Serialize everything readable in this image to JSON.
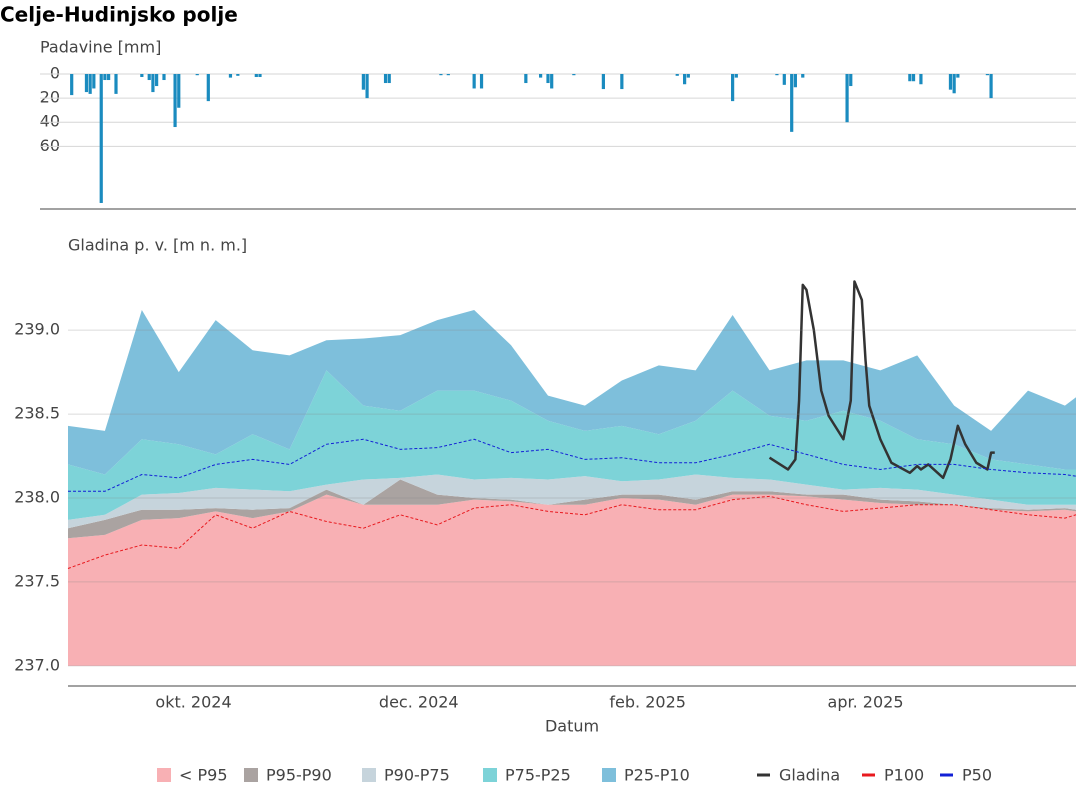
{
  "title": "Celje-Hudinjsko polje",
  "chart_data": [
    {
      "type": "bar",
      "ylabel": "Padavine [mm]",
      "color": "#1a8bbf",
      "inverted": true,
      "grid": true,
      "ylim": [
        0,
        112
      ],
      "yticks": [
        0,
        20,
        40,
        60
      ],
      "xlim": [
        "2024-08-28",
        "2025-05-28"
      ],
      "x": [
        "2024-08-29",
        "2024-09-02",
        "2024-09-03",
        "2024-09-04",
        "2024-09-06",
        "2024-09-07",
        "2024-09-08",
        "2024-09-10",
        "2024-09-17",
        "2024-09-19",
        "2024-09-20",
        "2024-09-21",
        "2024-09-23",
        "2024-09-26",
        "2024-09-27",
        "2024-10-02",
        "2024-10-05",
        "2024-10-11",
        "2024-10-13",
        "2024-10-18",
        "2024-10-19",
        "2024-11-16",
        "2024-11-17",
        "2024-11-22",
        "2024-11-23",
        "2024-12-07",
        "2024-12-09",
        "2024-12-16",
        "2024-12-18",
        "2024-12-30",
        "2025-01-03",
        "2025-01-05",
        "2025-01-06",
        "2025-01-12",
        "2025-01-20",
        "2025-01-25",
        "2025-02-09",
        "2025-02-11",
        "2025-02-12",
        "2025-02-24",
        "2025-02-25",
        "2025-03-08",
        "2025-03-10",
        "2025-03-12",
        "2025-03-13",
        "2025-03-15",
        "2025-03-27",
        "2025-03-28",
        "2025-04-13",
        "2025-04-14",
        "2025-04-16",
        "2025-04-24",
        "2025-04-25",
        "2025-04-26",
        "2025-05-04",
        "2025-05-05"
      ],
      "values": [
        17.5,
        15,
        16.5,
        12,
        107,
        5,
        5,
        16.5,
        2.5,
        5,
        15,
        10,
        5,
        44,
        28,
        1,
        22.5,
        3,
        1.5,
        2.5,
        2.5,
        13,
        20,
        7.5,
        7.5,
        1,
        1,
        12,
        12,
        7.5,
        3,
        7.5,
        12,
        1,
        12.5,
        12.5,
        1.5,
        8.5,
        3,
        22.5,
        3,
        1,
        9,
        48,
        11,
        3,
        40,
        10,
        6,
        6,
        8.5,
        13,
        16,
        3,
        1,
        20
      ]
    },
    {
      "type": "area",
      "ylabel": "Gladina p. v. [m n. m.]",
      "xlabel": "Datum",
      "grid": true,
      "ylim": [
        236.88,
        239.4
      ],
      "area_base": 237,
      "yticks": [
        {
          "value": 237,
          "label": "237.0"
        },
        {
          "value": 237.5,
          "label": "237.5"
        },
        {
          "value": 238,
          "label": "238.0"
        },
        {
          "value": 238.5,
          "label": "238.5"
        },
        {
          "value": 239,
          "label": "239.0"
        }
      ],
      "xlim": [
        "2024-08-28",
        "2025-05-28"
      ],
      "xticks": [
        {
          "value": "2024-10-01",
          "label": "okt. 2024"
        },
        {
          "value": "2024-12-01",
          "label": "dec. 2024"
        },
        {
          "value": "2025-02-01",
          "label": "feb. 2025"
        },
        {
          "value": "2025-04-01",
          "label": "apr. 2025"
        }
      ],
      "x": [
        "2024-08-28",
        "2024-09-07",
        "2024-09-17",
        "2024-09-27",
        "2024-10-07",
        "2024-10-17",
        "2024-10-27",
        "2024-11-06",
        "2024-11-16",
        "2024-11-26",
        "2024-12-06",
        "2024-12-16",
        "2024-12-26",
        "2025-01-05",
        "2025-01-15",
        "2025-01-25",
        "2025-02-04",
        "2025-02-14",
        "2025-02-24",
        "2025-03-06",
        "2025-03-16",
        "2025-03-26",
        "2025-04-05",
        "2025-04-15",
        "2025-04-25",
        "2025-05-05",
        "2025-05-15",
        "2025-05-25",
        "2025-05-28"
      ],
      "series": [
        {
          "name": "< P95",
          "color": "#f8b0b4",
          "fill": "tobase",
          "values": [
            237.76,
            237.78,
            237.87,
            237.88,
            237.92,
            237.88,
            237.92,
            238.02,
            237.96,
            237.96,
            237.96,
            237.99,
            237.98,
            237.96,
            237.96,
            238.0,
            237.99,
            237.96,
            238.02,
            238.02,
            238.01,
            237.99,
            237.97,
            237.96,
            237.96,
            237.93,
            237.92,
            237.93,
            237.92
          ]
        },
        {
          "name": "P95-P90",
          "color": "#aaa3a1",
          "fill": "tonexty",
          "values": [
            237.82,
            237.87,
            237.93,
            237.93,
            237.94,
            237.93,
            237.94,
            238.05,
            237.96,
            238.11,
            238.02,
            238.0,
            237.99,
            237.96,
            237.99,
            238.02,
            238.02,
            237.99,
            238.04,
            238.04,
            238.02,
            238.02,
            237.99,
            237.98,
            237.96,
            237.94,
            237.93,
            237.94,
            237.93
          ]
        },
        {
          "name": "P90-P75",
          "color": "#c6d4dc",
          "fill": "tonexty",
          "values": [
            237.87,
            237.9,
            238.02,
            238.03,
            238.06,
            238.05,
            238.04,
            238.08,
            238.11,
            238.12,
            238.14,
            238.11,
            238.12,
            238.11,
            238.13,
            238.1,
            238.11,
            238.14,
            238.12,
            238.11,
            238.08,
            238.05,
            238.06,
            238.05,
            238.02,
            237.99,
            237.96,
            237.96,
            237.96
          ]
        },
        {
          "name": "P75-P25",
          "color": "#7dd3d8",
          "fill": "tonexty",
          "values": [
            238.2,
            238.14,
            238.35,
            238.32,
            238.26,
            238.38,
            238.29,
            238.76,
            238.55,
            238.52,
            238.64,
            238.64,
            238.58,
            238.46,
            238.4,
            238.43,
            238.38,
            238.46,
            238.64,
            238.49,
            238.46,
            238.52,
            238.46,
            238.35,
            238.32,
            238.23,
            238.2,
            238.17,
            238.17
          ]
        },
        {
          "name": "P25-P10",
          "color": "#7ebfdb",
          "fill": "tonexty",
          "values": [
            238.43,
            238.4,
            239.12,
            238.75,
            239.06,
            238.88,
            238.85,
            238.94,
            238.95,
            238.97,
            239.06,
            239.12,
            238.91,
            238.61,
            238.55,
            238.7,
            238.79,
            238.76,
            239.09,
            238.76,
            238.82,
            238.82,
            238.76,
            238.85,
            238.55,
            238.4,
            238.64,
            238.55,
            238.6
          ]
        },
        {
          "name": "Gladina",
          "color": "#333333",
          "fill": "none",
          "dash": "solid",
          "x": [
            "2025-03-06",
            "2025-03-11",
            "2025-03-13",
            "2025-03-14",
            "2025-03-15",
            "2025-03-16",
            "2025-03-18",
            "2025-03-20",
            "2025-03-22",
            "2025-03-26",
            "2025-03-28",
            "2025-03-29",
            "2025-03-31",
            "2025-04-01",
            "2025-04-02",
            "2025-04-05",
            "2025-04-08",
            "2025-04-13",
            "2025-04-15",
            "2025-04-16",
            "2025-04-18",
            "2025-04-22",
            "2025-04-24",
            "2025-04-26",
            "2025-04-28",
            "2025-05-01",
            "2025-05-04",
            "2025-05-05",
            "2025-05-06"
          ],
          "values": [
            238.24,
            238.17,
            238.23,
            238.58,
            239.27,
            239.24,
            239.0,
            238.64,
            238.49,
            238.35,
            238.58,
            239.29,
            239.18,
            238.82,
            238.55,
            238.35,
            238.21,
            238.15,
            238.19,
            238.17,
            238.2,
            238.12,
            238.23,
            238.43,
            238.32,
            238.21,
            238.17,
            238.27,
            238.27
          ]
        },
        {
          "name": "P100",
          "color": "#e8191e",
          "fill": "none",
          "dash": "dash",
          "values": [
            237.58,
            237.66,
            237.72,
            237.7,
            237.9,
            237.82,
            237.92,
            237.86,
            237.82,
            237.9,
            237.84,
            237.94,
            237.96,
            237.92,
            237.9,
            237.96,
            237.93,
            237.93,
            237.99,
            238.01,
            237.96,
            237.92,
            237.94,
            237.96,
            237.96,
            237.93,
            237.9,
            237.88,
            237.9
          ]
        },
        {
          "name": "P50",
          "color": "#1220d6",
          "fill": "none",
          "dash": "dash",
          "values": [
            238.04,
            238.04,
            238.14,
            238.12,
            238.2,
            238.23,
            238.2,
            238.32,
            238.35,
            238.29,
            238.3,
            238.35,
            238.27,
            238.29,
            238.23,
            238.24,
            238.21,
            238.21,
            238.26,
            238.32,
            238.26,
            238.2,
            238.17,
            238.2,
            238.2,
            238.17,
            238.15,
            238.14,
            238.13
          ]
        }
      ]
    }
  ]
}
